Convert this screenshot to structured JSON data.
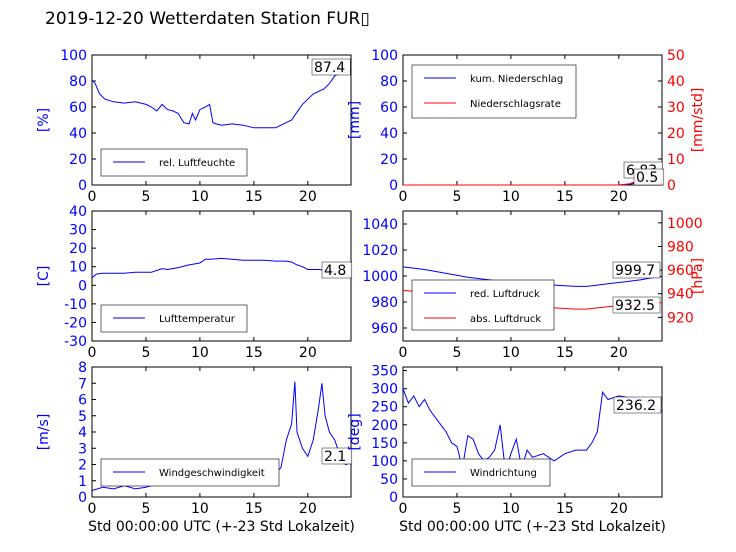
{
  "title": "2019-12-20 Wetterdaten Station FUR▯",
  "chart_data": [
    {
      "id": "humidity",
      "type": "line",
      "xlim": [
        0,
        24
      ],
      "xticks": [
        0,
        5,
        10,
        15,
        20
      ],
      "ylim": [
        0,
        100
      ],
      "yticks": [
        0,
        20,
        40,
        60,
        80,
        100
      ],
      "ylabel": "[%]",
      "xlabel": "",
      "legend_loc": "lower-left",
      "annotation": "87.4",
      "series": [
        {
          "name": "rel. Luftfeuchte",
          "color": "#0000ff",
          "x": [
            0,
            0.3,
            0.7,
            1.2,
            2,
            3,
            4,
            5,
            5.5,
            6,
            6.5,
            7,
            7.5,
            8,
            8.5,
            9,
            9.3,
            9.6,
            10,
            10.5,
            10.9,
            11.2,
            11.5,
            12,
            13,
            14,
            15,
            16,
            17,
            18,
            18.5,
            19,
            19.5,
            20,
            20.5,
            21,
            21.5,
            22,
            22.5,
            23,
            24
          ],
          "y": [
            81,
            78,
            70,
            66,
            64,
            63,
            64,
            62,
            60,
            57,
            62,
            58,
            57,
            55,
            48,
            47,
            55,
            50,
            58,
            60,
            62,
            48,
            47,
            46,
            47,
            46,
            44,
            44,
            44,
            48,
            50,
            56,
            62,
            66,
            70,
            72,
            74,
            78,
            84,
            86,
            87.4
          ]
        }
      ]
    },
    {
      "id": "precipitation",
      "type": "line",
      "xlim": [
        0,
        24
      ],
      "xticks": [
        0,
        5,
        10,
        15,
        20
      ],
      "ylim": [
        0,
        100
      ],
      "yticks": [
        0,
        20,
        40,
        60,
        80,
        100
      ],
      "ylabel": "[mm]",
      "y2lim": [
        0,
        50
      ],
      "y2ticks": [
        0,
        10,
        20,
        30,
        40,
        50
      ],
      "y2label": "[mm/std]",
      "legend_loc": "upper-left",
      "annotations": [
        "6.83",
        "0.5"
      ],
      "series": [
        {
          "name": "kum. Niederschlag",
          "axis": "left",
          "color": "#0000ff",
          "x": [
            0,
            20,
            21,
            21.5,
            22,
            22.5,
            23,
            23.5,
            24
          ],
          "y": [
            0,
            0,
            0.5,
            1.5,
            2.5,
            4,
            5.5,
            6.4,
            6.83
          ]
        },
        {
          "name": "Niederschlagsrate",
          "axis": "right",
          "color": "#ff0000",
          "x": [
            0,
            20,
            21,
            21.5,
            22,
            22.5,
            23,
            23.5,
            24
          ],
          "y": [
            0,
            0,
            0.5,
            1.2,
            2.5,
            2.0,
            1.5,
            1.0,
            0.5
          ]
        }
      ]
    },
    {
      "id": "temperature",
      "type": "line",
      "xlim": [
        0,
        24
      ],
      "xticks": [
        0,
        5,
        10,
        15,
        20
      ],
      "ylim": [
        -30,
        40
      ],
      "yticks": [
        -30,
        -20,
        -10,
        0,
        10,
        20,
        30,
        40
      ],
      "ylabel": "[C]",
      "legend_loc": "lower-left",
      "annotation": "4.8",
      "series": [
        {
          "name": "Lufttemperatur",
          "color": "#0000ff",
          "x": [
            0,
            0.4,
            1,
            2,
            3,
            4,
            5,
            5.5,
            6,
            6.5,
            7,
            8,
            9,
            10,
            10.5,
            11,
            12,
            13,
            14,
            15,
            16,
            17,
            18,
            18.5,
            19,
            19.5,
            20,
            21,
            22,
            23,
            24
          ],
          "y": [
            4,
            6,
            6.5,
            6.5,
            6.5,
            7,
            7,
            7,
            8,
            9,
            8.5,
            9.5,
            11,
            12,
            14,
            14,
            14.5,
            14,
            13.5,
            13.5,
            13.5,
            13,
            13,
            12.5,
            11,
            10,
            8.5,
            8.5,
            8,
            6.5,
            4.8
          ]
        }
      ]
    },
    {
      "id": "pressure",
      "type": "line",
      "xlim": [
        0,
        24
      ],
      "xticks": [
        0,
        5,
        10,
        15,
        20
      ],
      "ylim": [
        950,
        1050
      ],
      "yticks": [
        960,
        980,
        1000,
        1020,
        1040
      ],
      "y2lim": [
        900,
        1010
      ],
      "y2ticks": [
        920,
        940,
        960,
        980,
        1000
      ],
      "y2label": "[hPa]",
      "legend_loc": "lower-left",
      "annotations": [
        "999.7",
        "932.5"
      ],
      "series": [
        {
          "name": "red. Luftdruck",
          "axis": "left",
          "color": "#0000ff",
          "x": [
            0,
            2,
            4,
            6,
            8,
            10,
            12,
            14,
            16,
            17,
            18,
            19,
            20,
            21,
            22,
            23,
            24
          ],
          "y": [
            1007,
            1005,
            1002,
            999,
            997,
            995,
            994,
            993,
            992,
            992,
            993,
            994,
            995,
            996,
            997,
            998.5,
            999.7
          ]
        },
        {
          "name": "abs. Luftdruck",
          "axis": "right",
          "color": "#ff0000",
          "x": [
            0,
            2,
            4,
            6,
            8,
            10,
            12,
            14,
            16,
            17,
            18,
            19,
            20,
            21,
            22,
            23,
            24
          ],
          "y": [
            943,
            941,
            937,
            934,
            932,
            930,
            928.5,
            928,
            927,
            927,
            928,
            929,
            930,
            930.5,
            931,
            932,
            932.5
          ]
        }
      ]
    },
    {
      "id": "wind_speed",
      "type": "line",
      "xlim": [
        0,
        24
      ],
      "xticks": [
        0,
        5,
        10,
        15,
        20
      ],
      "ylim": [
        0,
        8
      ],
      "yticks": [
        0,
        1,
        2,
        3,
        4,
        5,
        6,
        7,
        8
      ],
      "ylabel": "[m/s]",
      "xlabel": "Std 00:00:00 UTC (+-23 Std Lokalzeit)",
      "legend_loc": "lower-left",
      "annotation": "2.1",
      "series": [
        {
          "name": "Windgeschwindigkeit",
          "color": "#0000ff",
          "x": [
            0,
            1,
            2,
            3,
            4,
            5,
            6,
            7,
            8,
            9,
            10,
            11,
            12,
            13,
            14,
            15,
            16,
            17,
            17.5,
            18,
            18.5,
            18.8,
            19,
            19.5,
            20,
            20.5,
            21,
            21.3,
            21.6,
            22,
            22.5,
            23,
            23.5,
            24
          ],
          "y": [
            0.4,
            0.6,
            0.5,
            0.7,
            0.5,
            0.6,
            0.8,
            0.7,
            1.0,
            0.9,
            1.1,
            1.0,
            1.3,
            1.2,
            1.5,
            1.4,
            1.6,
            1.5,
            1.8,
            3.5,
            4.5,
            7.1,
            4.0,
            3.0,
            2.5,
            3.5,
            5.5,
            7.0,
            5.0,
            4.0,
            3.5,
            2.5,
            2.0,
            2.1
          ]
        }
      ]
    },
    {
      "id": "wind_direction",
      "type": "line",
      "xlim": [
        0,
        24
      ],
      "xticks": [
        0,
        5,
        10,
        15,
        20
      ],
      "ylim": [
        0,
        360
      ],
      "yticks": [
        0,
        50,
        100,
        150,
        200,
        250,
        300,
        350
      ],
      "ylabel": "[deg]",
      "xlabel": "Std 00:00:00 UTC (+-23 Std Lokalzeit)",
      "legend_loc": "lower-left",
      "annotation": "236.2",
      "series": [
        {
          "name": "Windrichtung",
          "color": "#0000ff",
          "x": [
            0,
            0.5,
            1,
            1.5,
            2,
            2.5,
            3,
            3.5,
            4,
            4.5,
            5,
            5.5,
            6,
            6.5,
            7,
            7.5,
            8,
            8.5,
            9,
            9.5,
            10,
            10.5,
            11,
            11.5,
            12,
            13,
            14,
            15,
            16,
            17,
            17.5,
            18,
            18.5,
            19,
            20,
            21,
            22,
            23,
            24
          ],
          "y": [
            300,
            260,
            280,
            250,
            270,
            240,
            220,
            200,
            180,
            150,
            140,
            80,
            170,
            160,
            120,
            100,
            110,
            130,
            200,
            70,
            120,
            160,
            80,
            130,
            110,
            120,
            100,
            120,
            130,
            130,
            150,
            180,
            290,
            270,
            280,
            275,
            270,
            260,
            236.2
          ]
        }
      ]
    }
  ]
}
